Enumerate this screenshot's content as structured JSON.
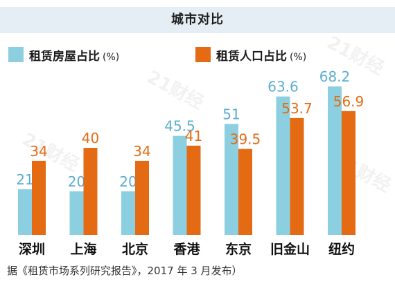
{
  "chart_data": {
    "type": "bar",
    "title": "城市对比",
    "categories": [
      "深圳",
      "上海",
      "北京",
      "香港",
      "东京",
      "旧金山",
      "纽约"
    ],
    "series": [
      {
        "name": "租赁房屋占比",
        "values": [
          21,
          20,
          20,
          45.5,
          51,
          63.6,
          68.2
        ],
        "color": "#8ccfe0",
        "label_color": "#5aaed0"
      },
      {
        "name": "租赁人口占比",
        "values": [
          34,
          40,
          34,
          41,
          39.5,
          53.7,
          56.9
        ],
        "color": "#e46b14",
        "label_color": "#e46b14"
      }
    ],
    "legend_unit": "(%)",
    "legend_position": "top",
    "ylim": [
      0,
      75
    ],
    "grid": false
  },
  "watermark_text": "21财经",
  "source": "据《租赁市场系列研究报告》，2017 年 3 月发布）"
}
